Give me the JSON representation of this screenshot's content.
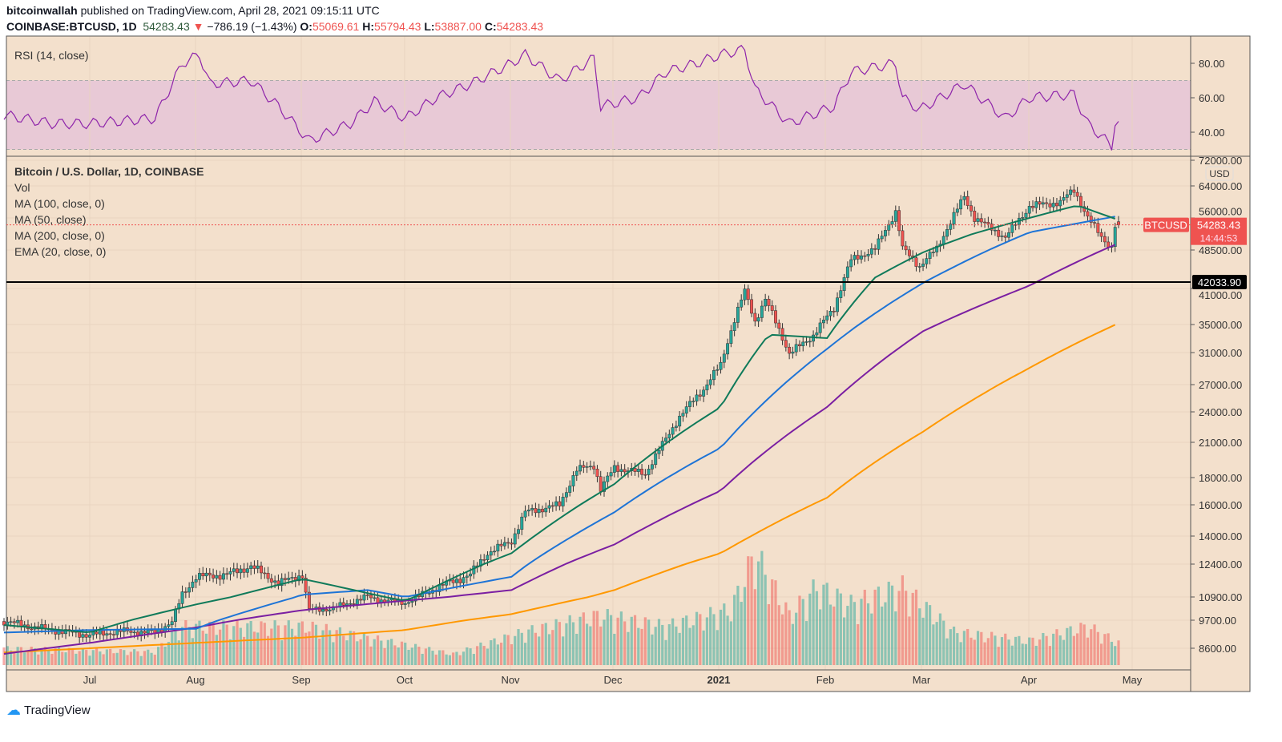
{
  "header": {
    "author": "bitcoinwallah",
    "published": " published on TradingView.com, April 28, 2021 09:15:11 UTC",
    "symbol": "COINBASE:BTCUSD, 1D",
    "last": "54283.43",
    "change": "−786.19 (−1.43%)",
    "o_label": "O:",
    "o": "55069.61",
    "h_label": "H:",
    "h": "55794.43",
    "l_label": "L:",
    "l": "53887.00",
    "c_label": "C:",
    "c": "54283.43"
  },
  "legend": {
    "rsi": "RSI (14, close)",
    "title": "Bitcoin / U.S. Dollar, 1D, COINBASE",
    "vol": "Vol",
    "ma100": "MA (100, close, 0)",
    "ma50": "MA (50, close)",
    "ma200": "MA (200, close, 0)",
    "ema20": "EMA (20, close, 0)"
  },
  "branding": "TradingView",
  "colors": {
    "bg": "#f3e0cc",
    "up": "#26a69a",
    "down": "#ef5350",
    "ema20": "#0f7a5a",
    "ma50": "#1e74d6",
    "ma100": "#7b1fa2",
    "ma200": "#ff9800",
    "rsi": "#8e24aa",
    "rsi_band": "#e8c9d6"
  },
  "chart_data": {
    "type": "candlestick",
    "scale": "log",
    "currency": "USD",
    "x_ticks": [
      "Jul",
      "Aug",
      "Sep",
      "Oct",
      "Nov",
      "Dec",
      "2021",
      "Feb",
      "Mar",
      "Apr",
      "May"
    ],
    "y_ticks": [
      72000,
      64000,
      56000,
      48500,
      41000,
      35000,
      31000,
      27000,
      24000,
      21000,
      18000,
      16000,
      14000,
      12400,
      10900,
      9700,
      8600
    ],
    "price_label": {
      "name": "BTCUSD",
      "value": "54283.43",
      "countdown": "14:44:53"
    },
    "horizontal_line": {
      "value": "42033.90"
    },
    "close": [
      [
        "2020-06-06",
        9650
      ],
      [
        "2020-06-15",
        9400
      ],
      [
        "2020-06-25",
        9200
      ],
      [
        "2020-07-01",
        9100
      ],
      [
        "2020-07-10",
        9250
      ],
      [
        "2020-07-20",
        9200
      ],
      [
        "2020-07-25",
        9650
      ],
      [
        "2020-07-28",
        11000
      ],
      [
        "2020-08-01",
        11800
      ],
      [
        "2020-08-10",
        11900
      ],
      [
        "2020-08-17",
        12300
      ],
      [
        "2020-08-25",
        11500
      ],
      [
        "2020-09-01",
        11900
      ],
      [
        "2020-09-03",
        10200
      ],
      [
        "2020-09-10",
        10300
      ],
      [
        "2020-09-20",
        10900
      ],
      [
        "2020-09-25",
        10700
      ],
      [
        "2020-10-01",
        10600
      ],
      [
        "2020-10-10",
        11300
      ],
      [
        "2020-10-20",
        11900
      ],
      [
        "2020-10-25",
        13000
      ],
      [
        "2020-11-01",
        13700
      ],
      [
        "2020-11-05",
        15500
      ],
      [
        "2020-11-15",
        16000
      ],
      [
        "2020-11-20",
        18600
      ],
      [
        "2020-11-25",
        19000
      ],
      [
        "2020-11-27",
        17100
      ],
      [
        "2020-12-01",
        18800
      ],
      [
        "2020-12-10",
        18300
      ],
      [
        "2020-12-16",
        21300
      ],
      [
        "2020-12-20",
        23500
      ],
      [
        "2020-12-27",
        26500
      ],
      [
        "2021-01-01",
        29400
      ],
      [
        "2021-01-08",
        40500
      ],
      [
        "2021-01-11",
        35500
      ],
      [
        "2021-01-14",
        39000
      ],
      [
        "2021-01-21",
        30800
      ],
      [
        "2021-01-28",
        33400
      ],
      [
        "2021-02-03",
        37600
      ],
      [
        "2021-02-08",
        46400
      ],
      [
        "2021-02-15",
        48700
      ],
      [
        "2021-02-21",
        57500
      ],
      [
        "2021-02-23",
        48800
      ],
      [
        "2021-02-28",
        45200
      ],
      [
        "2021-03-05",
        48800
      ],
      [
        "2021-03-13",
        61200
      ],
      [
        "2021-03-16",
        56000
      ],
      [
        "2021-03-25",
        51300
      ],
      [
        "2021-04-01",
        58800
      ],
      [
        "2021-04-10",
        59800
      ],
      [
        "2021-04-14",
        63000
      ],
      [
        "2021-04-18",
        56000
      ],
      [
        "2021-04-22",
        51500
      ],
      [
        "2021-04-25",
        49000
      ],
      [
        "2021-04-26",
        54000
      ],
      [
        "2021-04-27",
        54283.43
      ]
    ],
    "ema20": [
      [
        "2020-06-06",
        9500
      ],
      [
        "2020-07-01",
        9200
      ],
      [
        "2020-08-01",
        10500
      ],
      [
        "2020-09-01",
        11700
      ],
      [
        "2020-10-01",
        10700
      ],
      [
        "2020-11-01",
        13000
      ],
      [
        "2020-12-01",
        17500
      ],
      [
        "2021-01-01",
        24500
      ],
      [
        "2021-01-15",
        33500
      ],
      [
        "2021-02-01",
        33000
      ],
      [
        "2021-02-15",
        43000
      ],
      [
        "2021-03-01",
        48000
      ],
      [
        "2021-03-15",
        52000
      ],
      [
        "2021-04-01",
        56000
      ],
      [
        "2021-04-15",
        59000
      ],
      [
        "2021-04-27",
        55500
      ]
    ],
    "ma50": [
      [
        "2020-06-06",
        9200
      ],
      [
        "2020-07-01",
        9300
      ],
      [
        "2020-08-01",
        9350
      ],
      [
        "2020-09-01",
        11000
      ],
      [
        "2020-09-20",
        11200
      ],
      [
        "2020-10-01",
        10900
      ],
      [
        "2020-11-01",
        11800
      ],
      [
        "2020-12-01",
        15500
      ],
      [
        "2021-01-01",
        20500
      ],
      [
        "2021-02-01",
        31500
      ],
      [
        "2021-03-01",
        42000
      ],
      [
        "2021-04-01",
        52500
      ],
      [
        "2021-04-27",
        56500
      ]
    ],
    "ma100": [
      [
        "2020-06-06",
        8400
      ],
      [
        "2020-07-01",
        8800
      ],
      [
        "2020-08-01",
        9400
      ],
      [
        "2020-09-01",
        10200
      ],
      [
        "2020-10-01",
        10700
      ],
      [
        "2020-11-01",
        11200
      ],
      [
        "2020-12-01",
        13500
      ],
      [
        "2021-01-01",
        17000
      ],
      [
        "2021-02-01",
        24500
      ],
      [
        "2021-03-01",
        34000
      ],
      [
        "2021-04-01",
        41500
      ],
      [
        "2021-04-27",
        50000
      ]
    ],
    "ma200": [
      [
        "2020-06-06",
        8450
      ],
      [
        "2020-07-01",
        8600
      ],
      [
        "2020-08-01",
        8800
      ],
      [
        "2020-09-01",
        9000
      ],
      [
        "2020-10-01",
        9300
      ],
      [
        "2020-11-01",
        10000
      ],
      [
        "2020-12-01",
        11200
      ],
      [
        "2021-01-01",
        13000
      ],
      [
        "2021-02-01",
        16500
      ],
      [
        "2021-03-01",
        22000
      ],
      [
        "2021-04-01",
        29000
      ],
      [
        "2021-04-27",
        35200
      ]
    ],
    "rsi": {
      "ticks": [
        80,
        60,
        40
      ],
      "band": [
        30,
        70
      ],
      "values": [
        [
          "2020-06-06",
          50
        ],
        [
          "2020-06-20",
          45
        ],
        [
          "2020-07-01",
          45
        ],
        [
          "2020-07-20",
          48
        ],
        [
          "2020-07-28",
          80
        ],
        [
          "2020-08-02",
          85
        ],
        [
          "2020-08-05",
          68
        ],
        [
          "2020-08-17",
          70
        ],
        [
          "2020-08-25",
          55
        ],
        [
          "2020-09-03",
          35
        ],
        [
          "2020-09-15",
          45
        ],
        [
          "2020-09-22",
          58
        ],
        [
          "2020-10-01",
          48
        ],
        [
          "2020-10-10",
          60
        ],
        [
          "2020-10-20",
          68
        ],
        [
          "2020-11-01",
          80
        ],
        [
          "2020-11-05",
          85
        ],
        [
          "2020-11-15",
          70
        ],
        [
          "2020-11-25",
          83
        ],
        [
          "2020-11-27",
          55
        ],
        [
          "2020-12-08",
          60
        ],
        [
          "2020-12-16",
          75
        ],
        [
          "2020-12-25",
          80
        ],
        [
          "2021-01-01",
          85
        ],
        [
          "2021-01-08",
          88
        ],
        [
          "2021-01-11",
          65
        ],
        [
          "2021-01-21",
          45
        ],
        [
          "2021-02-03",
          55
        ],
        [
          "2021-02-08",
          75
        ],
        [
          "2021-02-21",
          80
        ],
        [
          "2021-02-23",
          60
        ],
        [
          "2021-02-28",
          53
        ],
        [
          "2021-03-13",
          68
        ],
        [
          "2021-03-25",
          48
        ],
        [
          "2021-04-01",
          60
        ],
        [
          "2021-04-14",
          62
        ],
        [
          "2021-04-18",
          45
        ],
        [
          "2021-04-25",
          32
        ],
        [
          "2021-04-26",
          46
        ],
        [
          "2021-04-27",
          45
        ]
      ]
    },
    "volume_relative": [
      [
        "2020-06-06",
        0.15
      ],
      [
        "2020-07-20",
        0.12
      ],
      [
        "2020-07-28",
        0.35
      ],
      [
        "2020-09-03",
        0.35
      ],
      [
        "2020-10-15",
        0.1
      ],
      [
        "2020-11-05",
        0.3
      ],
      [
        "2020-11-27",
        0.45
      ],
      [
        "2020-12-16",
        0.35
      ],
      [
        "2021-01-04",
        0.5
      ],
      [
        "2021-01-11",
        1.0
      ],
      [
        "2021-01-21",
        0.45
      ],
      [
        "2021-01-29",
        0.7
      ],
      [
        "2021-02-08",
        0.55
      ],
      [
        "2021-02-23",
        0.7
      ],
      [
        "2021-03-10",
        0.3
      ],
      [
        "2021-04-01",
        0.22
      ],
      [
        "2021-04-18",
        0.35
      ],
      [
        "2021-04-27",
        0.2
      ]
    ]
  }
}
